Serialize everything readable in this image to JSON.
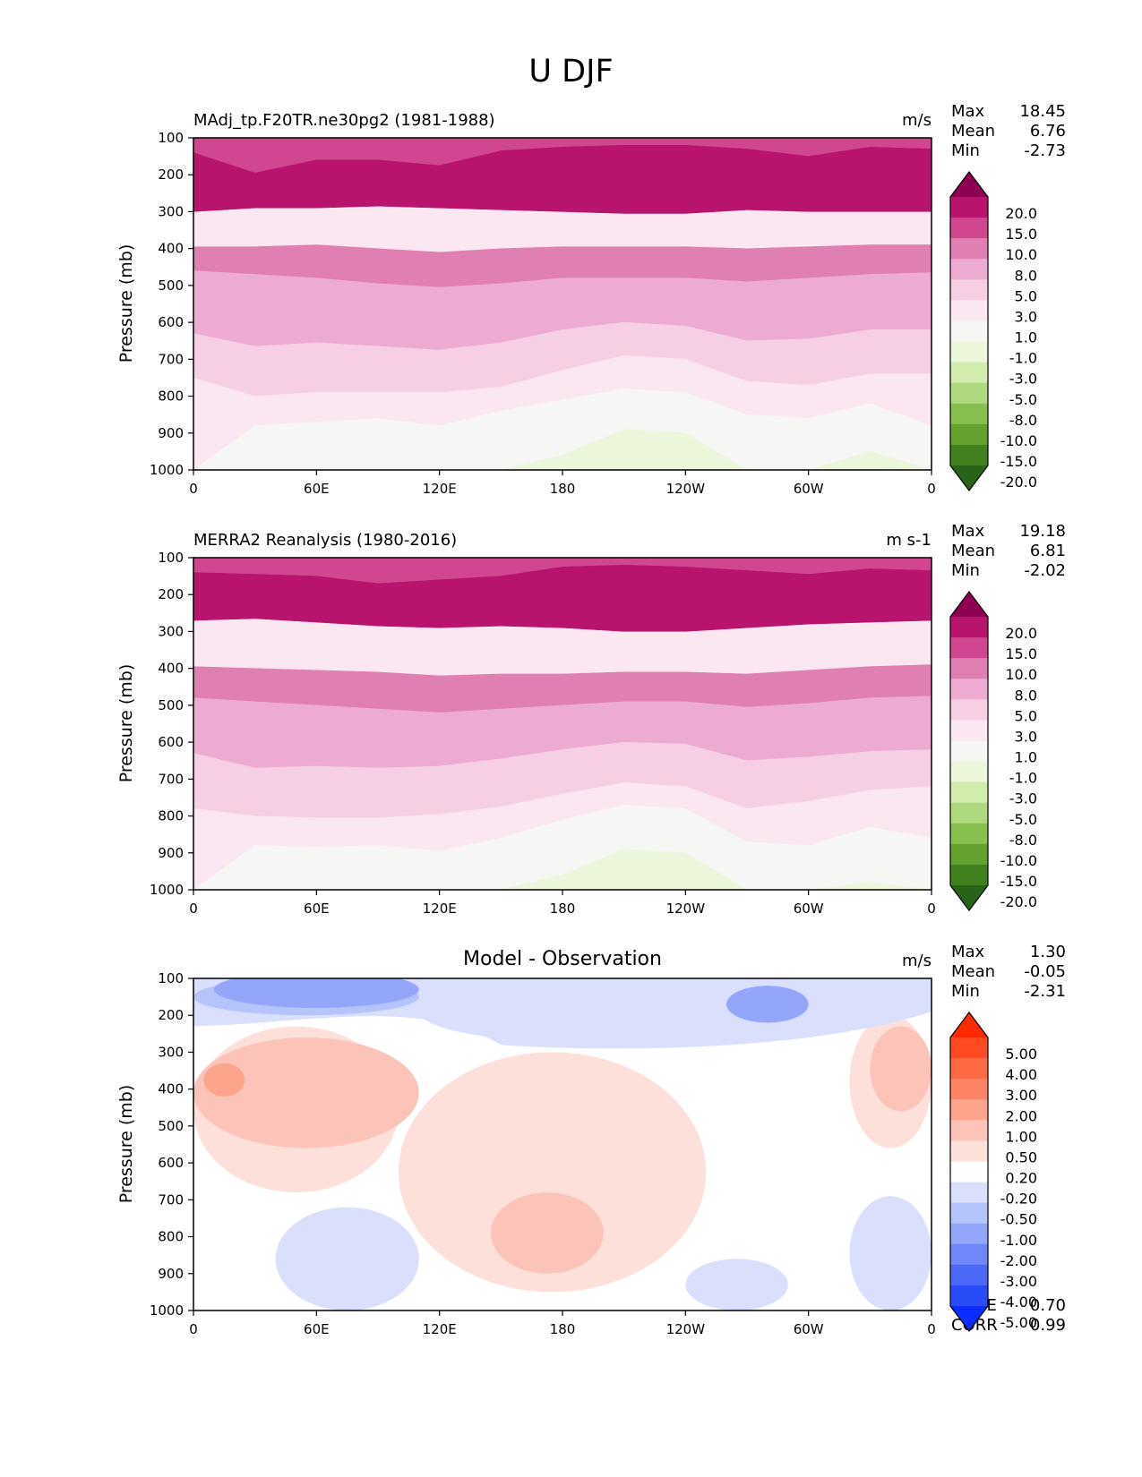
{
  "figure_title": "U DJF",
  "chart_data": [
    {
      "type": "heatmap",
      "panel": "test",
      "title_left": "MAdj_tp.F20TR.ne30pg2 (1981-1988)",
      "title_right": "m/s",
      "ylabel": "Pressure (mb)",
      "xlabel": "",
      "ylim": [
        1000,
        100
      ],
      "xlim": [
        0,
        360
      ],
      "yticks": [
        "100",
        "200",
        "300",
        "400",
        "500",
        "600",
        "700",
        "800",
        "900",
        "1000"
      ],
      "ytick_values": [
        100,
        200,
        300,
        400,
        500,
        600,
        700,
        800,
        900,
        1000
      ],
      "xticks": [
        "0",
        "60E",
        "120E",
        "180",
        "120W",
        "60W",
        "0"
      ],
      "xtick_values": [
        0,
        60,
        120,
        180,
        240,
        300,
        360
      ],
      "stats": [
        {
          "label": "Max",
          "value": "18.45"
        },
        {
          "label": "Mean",
          "value": "6.76"
        },
        {
          "label": "Min",
          "value": "-2.73"
        }
      ],
      "colorbar": {
        "levels": [
          "20.0",
          "15.0",
          "10.0",
          "8.0",
          "5.0",
          "3.0",
          "1.0",
          "-1.0",
          "-3.0",
          "-5.0",
          "-8.0",
          "-10.0",
          "-15.0",
          "-20.0"
        ],
        "colors": [
          "#8e0152",
          "#b8146d",
          "#d0468f",
          "#e07fb2",
          "#eeabd2",
          "#f6cfe5",
          "#fbe7f1",
          "#f6f6f4",
          "#ebf6da",
          "#d2ecae",
          "#aed97e",
          "#88c050",
          "#64a22f",
          "#40801f",
          "#276419"
        ],
        "extend": "both"
      },
      "fill_order_bands": [
        {
          "color": "#d0468f",
          "top_hpa": [
            100,
            100,
            100,
            100,
            100,
            100,
            100,
            100,
            100,
            100,
            100,
            100,
            100
          ],
          "bottom_hpa": [
            190,
            240,
            245,
            245,
            255,
            260,
            270,
            275,
            275,
            285,
            280,
            270,
            270
          ]
        },
        {
          "color": "#b8146d",
          "top_hpa": [
            140,
            195,
            160,
            160,
            175,
            135,
            125,
            120,
            120,
            130,
            150,
            125,
            130
          ],
          "bottom_hpa": [
            300,
            290,
            290,
            285,
            290,
            295,
            300,
            305,
            305,
            295,
            300,
            300,
            300
          ]
        },
        {
          "color": "#e07fb2",
          "top_hpa": [
            395,
            395,
            390,
            400,
            410,
            400,
            395,
            395,
            395,
            400,
            395,
            390,
            390
          ],
          "bottom_hpa": [
            460,
            470,
            480,
            495,
            505,
            495,
            480,
            480,
            480,
            490,
            480,
            470,
            465
          ]
        },
        {
          "color": "#eeabd2",
          "top_hpa": [
            460,
            470,
            480,
            495,
            505,
            495,
            480,
            480,
            480,
            490,
            480,
            470,
            465
          ],
          "bottom_hpa": [
            630,
            665,
            655,
            665,
            675,
            655,
            620,
            600,
            610,
            650,
            645,
            620,
            620
          ]
        },
        {
          "color": "#f6cfe5",
          "top_hpa": [
            630,
            665,
            655,
            665,
            675,
            655,
            620,
            600,
            610,
            650,
            645,
            620,
            620
          ],
          "bottom_hpa": [
            750,
            800,
            790,
            790,
            790,
            775,
            730,
            690,
            700,
            760,
            770,
            740,
            740
          ]
        },
        {
          "color": "#fbe7f1",
          "top_hpa": [
            750,
            800,
            790,
            790,
            790,
            775,
            730,
            690,
            700,
            760,
            770,
            740,
            740
          ],
          "bottom_hpa": [
            1000,
            880,
            870,
            860,
            880,
            840,
            810,
            780,
            790,
            850,
            860,
            820,
            880
          ]
        },
        {
          "color": "#f6f6f4",
          "top_hpa": [
            1000,
            880,
            870,
            860,
            880,
            840,
            810,
            780,
            790,
            850,
            860,
            820,
            880
          ],
          "bottom_hpa": [
            1000,
            1000,
            1000,
            1000,
            1000,
            1000,
            1000,
            1000,
            1000,
            1000,
            1000,
            1000,
            1000
          ]
        },
        {
          "color": "#ebf6da",
          "top_hpa": [
            1000,
            1000,
            1000,
            1000,
            1000,
            1000,
            960,
            890,
            900,
            1000,
            1000,
            950,
            1000
          ],
          "bottom_hpa": [
            1000,
            1000,
            1000,
            1000,
            1000,
            1000,
            1000,
            1000,
            1000,
            1000,
            1000,
            1000,
            1000
          ]
        }
      ]
    },
    {
      "type": "heatmap",
      "panel": "reference",
      "title_left": "MERRA2 Reanalysis (1980-2016)",
      "title_right": "m s-1",
      "ylabel": "Pressure (mb)",
      "xlabel": "",
      "ylim": [
        1000,
        100
      ],
      "xlim": [
        0,
        360
      ],
      "yticks": [
        "100",
        "200",
        "300",
        "400",
        "500",
        "600",
        "700",
        "800",
        "900",
        "1000"
      ],
      "ytick_values": [
        100,
        200,
        300,
        400,
        500,
        600,
        700,
        800,
        900,
        1000
      ],
      "xticks": [
        "0",
        "60E",
        "120E",
        "180",
        "120W",
        "60W",
        "0"
      ],
      "xtick_values": [
        0,
        60,
        120,
        180,
        240,
        300,
        360
      ],
      "stats": [
        {
          "label": "Max",
          "value": "19.18"
        },
        {
          "label": "Mean",
          "value": "6.81"
        },
        {
          "label": "Min",
          "value": "-2.02"
        }
      ],
      "colorbar": {
        "levels": [
          "20.0",
          "15.0",
          "10.0",
          "8.0",
          "5.0",
          "3.0",
          "1.0",
          "-1.0",
          "-3.0",
          "-5.0",
          "-8.0",
          "-10.0",
          "-15.0",
          "-20.0"
        ],
        "colors": [
          "#8e0152",
          "#b8146d",
          "#d0468f",
          "#e07fb2",
          "#eeabd2",
          "#f6cfe5",
          "#fbe7f1",
          "#f6f6f4",
          "#ebf6da",
          "#d2ecae",
          "#aed97e",
          "#88c050",
          "#64a22f",
          "#40801f",
          "#276419"
        ],
        "extend": "both"
      },
      "fill_order_bands": [
        {
          "color": "#d0468f",
          "top_hpa": [
            100,
            100,
            100,
            100,
            100,
            100,
            100,
            100,
            100,
            100,
            100,
            100,
            100
          ],
          "bottom_hpa": [
            150,
            155,
            160,
            175,
            165,
            160,
            130,
            125,
            130,
            140,
            150,
            135,
            140
          ]
        },
        {
          "color": "#b8146d",
          "top_hpa": [
            140,
            145,
            150,
            170,
            160,
            150,
            125,
            120,
            125,
            135,
            145,
            130,
            135
          ],
          "bottom_hpa": [
            270,
            265,
            275,
            285,
            290,
            285,
            290,
            300,
            300,
            290,
            280,
            275,
            270
          ]
        },
        {
          "color": "#e07fb2",
          "top_hpa": [
            395,
            400,
            405,
            410,
            420,
            415,
            415,
            410,
            410,
            415,
            405,
            395,
            390
          ]
        },
        {
          "color": "#eeabd2",
          "top_hpa": [
            480,
            490,
            500,
            510,
            520,
            510,
            500,
            490,
            490,
            505,
            495,
            480,
            475
          ],
          "bottom_hpa": [
            630,
            670,
            665,
            670,
            665,
            645,
            620,
            600,
            605,
            650,
            640,
            625,
            620
          ]
        },
        {
          "color": "#f6cfe5",
          "top_hpa": [
            630,
            670,
            665,
            670,
            665,
            645,
            620,
            600,
            605,
            650,
            640,
            625,
            620
          ],
          "bottom_hpa": [
            780,
            800,
            805,
            805,
            795,
            775,
            740,
            710,
            720,
            780,
            760,
            730,
            720
          ]
        },
        {
          "color": "#fbe7f1",
          "top_hpa": [
            780,
            800,
            805,
            805,
            795,
            775,
            740,
            710,
            720,
            780,
            760,
            730,
            720
          ]
        },
        {
          "color": "#f6f6f4",
          "top_hpa": [
            1000,
            880,
            885,
            880,
            895,
            860,
            810,
            770,
            780,
            870,
            880,
            830,
            860
          ]
        },
        {
          "color": "#ebf6da",
          "top_hpa": [
            1000,
            1000,
            1000,
            1000,
            1000,
            1000,
            960,
            890,
            900,
            1000,
            1000,
            980,
            1000
          ]
        }
      ]
    },
    {
      "type": "heatmap",
      "panel": "difference",
      "title_center": "Model - Observation",
      "title_right": "m/s",
      "ylabel": "Pressure (mb)",
      "xlabel": "",
      "ylim": [
        1000,
        100
      ],
      "xlim": [
        0,
        360
      ],
      "yticks": [
        "100",
        "200",
        "300",
        "400",
        "500",
        "600",
        "700",
        "800",
        "900",
        "1000"
      ],
      "ytick_values": [
        100,
        200,
        300,
        400,
        500,
        600,
        700,
        800,
        900,
        1000
      ],
      "xticks": [
        "0",
        "60E",
        "120E",
        "180",
        "120W",
        "60W",
        "0"
      ],
      "xtick_values": [
        0,
        60,
        120,
        180,
        240,
        300,
        360
      ],
      "stats": [
        {
          "label": "Max",
          "value": "1.30"
        },
        {
          "label": "Mean",
          "value": "-0.05"
        },
        {
          "label": "Min",
          "value": "-2.31"
        }
      ],
      "metrics": [
        {
          "label": "RMSE",
          "value": "0.70"
        },
        {
          "label": "CORR",
          "value": "0.99"
        }
      ],
      "colorbar": {
        "levels": [
          "5.00",
          "4.00",
          "3.00",
          "2.00",
          "1.00",
          "0.50",
          "0.20",
          "-0.20",
          "-0.50",
          "-1.00",
          "-2.00",
          "-3.00",
          "-4.00",
          "-5.00"
        ],
        "colors": [
          "#ff2a00",
          "#ff4a22",
          "#ff6a44",
          "#ff8466",
          "#fca48c",
          "#fcc4b8",
          "#fde0da",
          "#ffffff",
          "#dae0fc",
          "#b6c4fc",
          "#93a6fa",
          "#6f87f8",
          "#4b68f6",
          "#2a4cf8",
          "#0a2cfc"
        ],
        "extend": "both"
      },
      "regions": [
        {
          "value_range": "-1.00 to -0.50",
          "lon": [
            0,
            110
          ],
          "hpa": [
            100,
            200
          ]
        },
        {
          "value_range": "-0.50 to -0.20",
          "lon": [
            110,
            300
          ],
          "hpa": [
            100,
            280
          ]
        },
        {
          "value_range": "0.50 to 1.00",
          "lon": [
            0,
            110
          ],
          "hpa": [
            260,
            560
          ]
        },
        {
          "value_range": "1.00 to 2.00",
          "lon": [
            5,
            25
          ],
          "hpa": [
            330,
            420
          ]
        },
        {
          "value_range": "0.50 to 1.00",
          "lon": [
            145,
            200
          ],
          "hpa": [
            680,
            900
          ]
        },
        {
          "value_range": "0.50 to 1.00",
          "lon": [
            330,
            360
          ],
          "hpa": [
            230,
            460
          ]
        },
        {
          "value_range": "-0.50 to -0.20",
          "lon": [
            40,
            110
          ],
          "hpa": [
            720,
            1000
          ]
        },
        {
          "value_range": "-0.50 to -0.20",
          "lon": [
            240,
            290
          ],
          "hpa": [
            860,
            1000
          ]
        },
        {
          "value_range": "-0.50 to -0.20",
          "lon": [
            320,
            360
          ],
          "hpa": [
            690,
            1000
          ]
        }
      ]
    }
  ]
}
